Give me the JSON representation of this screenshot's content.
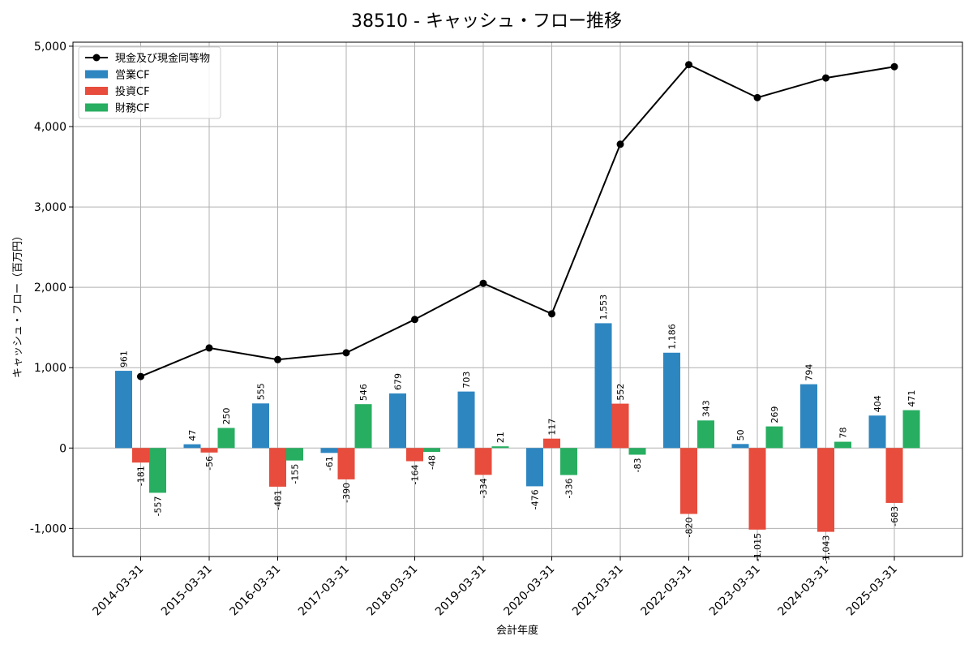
{
  "chart_data": {
    "type": "bar",
    "title": "38510 - キャッシュ・フロー推移",
    "xlabel": "会計年度",
    "ylabel": "キャッシュ・フロー（百万円）",
    "ylim": [
      -1350,
      5050
    ],
    "yticks": [
      -1000,
      0,
      1000,
      2000,
      3000,
      4000,
      5000
    ],
    "ytick_labels": [
      "-1,000",
      "0",
      "1,000",
      "2,000",
      "3,000",
      "4,000",
      "5,000"
    ],
    "grid": true,
    "legend_position": "top-left",
    "categories": [
      "2014-03-31",
      "2015-03-31",
      "2016-03-31",
      "2017-03-31",
      "2018-03-31",
      "2019-03-31",
      "2020-03-31",
      "2021-03-31",
      "2022-03-31",
      "2023-03-31",
      "2024-03-31",
      "2025-03-31"
    ],
    "series": [
      {
        "name": "営業CF",
        "kind": "bar",
        "color": "#2e86c1",
        "values": [
          961,
          47,
          555,
          -61,
          679,
          703,
          -476,
          1553,
          1186,
          50,
          794,
          404
        ],
        "labels": [
          "961",
          "47",
          "555",
          "-61",
          "679",
          "703",
          "-476",
          "1,553",
          "1,186",
          "50",
          "794",
          "404"
        ]
      },
      {
        "name": "投資CF",
        "kind": "bar",
        "color": "#e74c3c",
        "values": [
          -181,
          -56,
          -481,
          -390,
          -164,
          -334,
          117,
          552,
          -820,
          -1015,
          -1043,
          -683
        ],
        "labels": [
          "-181",
          "-56",
          "-481",
          "-390",
          "-164",
          "-334",
          "117",
          "552",
          "-820",
          "-1,015",
          "-1,043",
          "-683"
        ]
      },
      {
        "name": "財務CF",
        "kind": "bar",
        "color": "#27ae60",
        "values": [
          -557,
          250,
          -155,
          546,
          -48,
          21,
          -336,
          -83,
          343,
          269,
          78,
          471
        ],
        "labels": [
          "-557",
          "250",
          "-155",
          "546",
          "-48",
          "21",
          "-336",
          "-83",
          "343",
          "269",
          "78",
          "471"
        ]
      },
      {
        "name": "現金及び現金同等物",
        "kind": "line",
        "color": "#000000",
        "values": [
          890,
          1245,
          1100,
          1185,
          1600,
          2050,
          1670,
          3780,
          4770,
          4360,
          4605,
          4745
        ]
      }
    ]
  }
}
